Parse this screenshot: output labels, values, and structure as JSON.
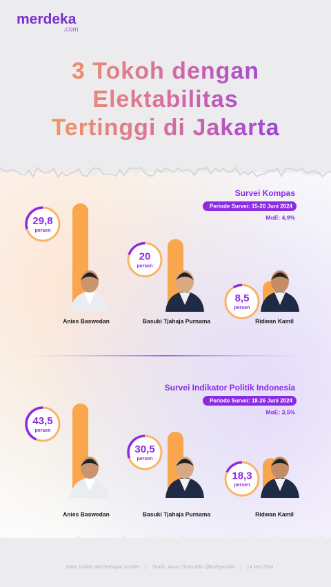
{
  "header": {
    "logo": "merdeka",
    "logo_suffix": ".com",
    "title_lines": [
      "3 Tokoh dengan",
      "Elektabilitas",
      "Tertinggi di Jakarta"
    ]
  },
  "chart_data": [
    {
      "type": "bar",
      "title": "Survei Kompas",
      "subtitle": "Periode Survei: 15-20 Juni 2024",
      "annotation": "MoE: 4,9%",
      "categories": [
        "Anies Baswedan",
        "Basuki Tjahaja Purnama",
        "Ridwan Kamil"
      ],
      "values": [
        29.8,
        20,
        8.5
      ],
      "value_labels": [
        "29,8",
        "20",
        "8,5"
      ],
      "unit_label": "persen",
      "color": "#f9a64c"
    },
    {
      "type": "bar",
      "title": "Survei Indikator Politik Indonesia",
      "subtitle": "Periode Survei: 18-26 Juni 2024",
      "annotation": "MoE: 3,5%",
      "categories": [
        "Anies Baswedan",
        "Basuki Tjahaja Purnama",
        "Ridwan Kamil"
      ],
      "values": [
        43.5,
        30.5,
        18.3
      ],
      "value_labels": [
        "43,5",
        "30,5",
        "18,3"
      ],
      "unit_label": "persen",
      "color": "#f9a64c"
    }
  ],
  "footer": {
    "items": [
      "Data: Diolah dari berbagai sumber",
      "Grafis: Amar Choiruddin @kolegambar",
      "14 Mei 2024"
    ]
  }
}
